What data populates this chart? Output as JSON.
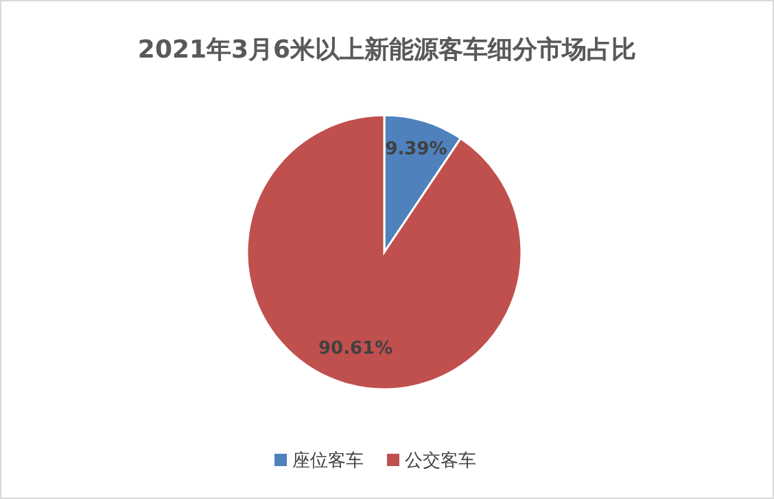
{
  "chart_data": {
    "type": "pie",
    "title": "2021年3月6米以上新能源客车细分市场占比",
    "categories": [
      "座位客车",
      "公交客车"
    ],
    "values": [
      9.39,
      90.61
    ],
    "colors": [
      "#4f81bd",
      "#c0504d"
    ],
    "value_labels": [
      "9.39%",
      "90.61%"
    ],
    "legend": "bottom"
  }
}
